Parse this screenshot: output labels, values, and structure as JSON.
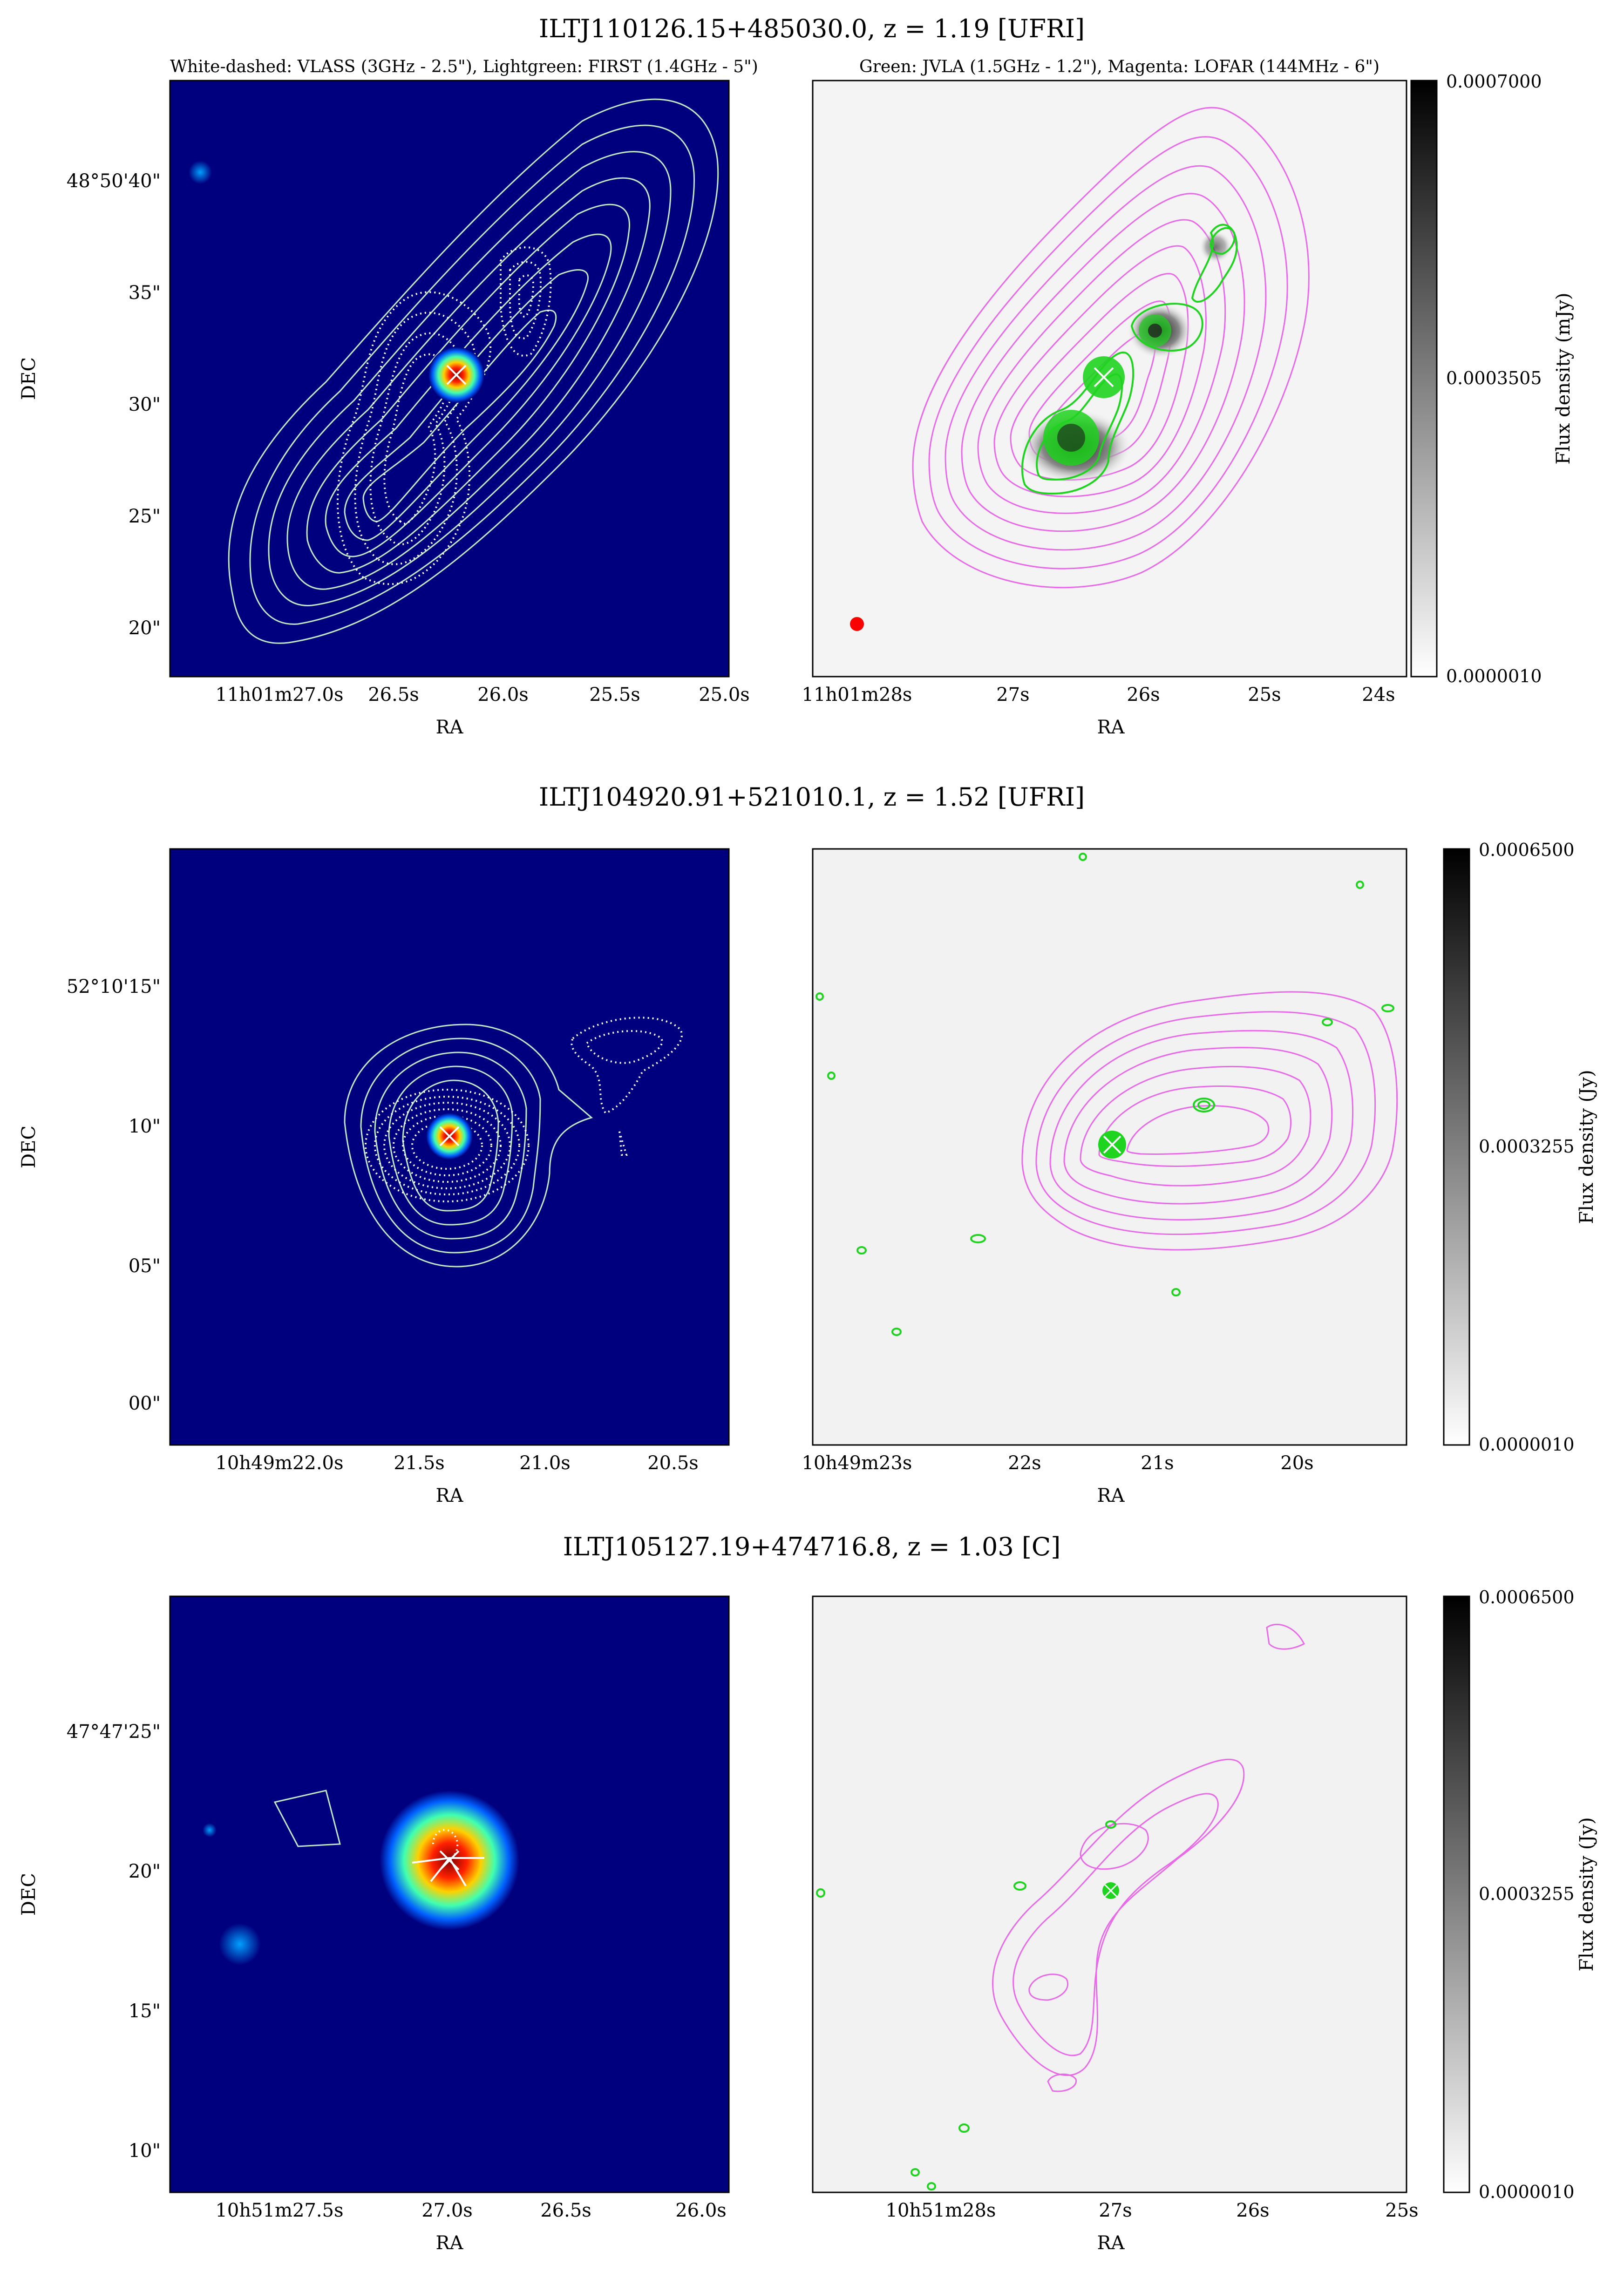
{
  "legend": {
    "left": "White-dashed: VLASS (3GHz - 2.5\"), Lightgreen: FIRST (1.4GHz - 5\")",
    "right": "Green: JVLA (1.5GHz - 1.2\"), Magenta: LOFAR (144MHz - 6\")"
  },
  "colors": {
    "background_map": "#00007f",
    "lofar_contour": "#e86ae8",
    "jvla_contour": "#1fd41f",
    "first_contour": "#bfe8c4",
    "vlass_contour": "#ffffff",
    "beam_marker": "#ff0000"
  },
  "panels": [
    {
      "title": "ILTJ110126.15+485030.0, z = 1.19 [UFRI]",
      "ylabel": "DEC",
      "xlabel": "RA",
      "dec_ticks": [
        "48°50'40\"",
        "35\"",
        "30\"",
        "25\"",
        "20\""
      ],
      "ra_ticks_left": [
        "11h01m27.0s",
        "26.5s",
        "26.0s",
        "25.5s",
        "25.0s"
      ],
      "ra_ticks_right": [
        "11h01m28s",
        "27s",
        "26s",
        "25s",
        "24s"
      ],
      "colorbar_label": "Flux density (mJy)",
      "colorbar_ticks": [
        "0.0007000",
        "0.0003505",
        "0.0000010"
      ]
    },
    {
      "title": "ILTJ104920.91+521010.1, z = 1.52 [UFRI]",
      "ylabel": "DEC",
      "xlabel": "RA",
      "dec_ticks": [
        "52°10'15\"",
        "10\"",
        "05\"",
        "00\""
      ],
      "ra_ticks_left": [
        "10h49m22.0s",
        "21.5s",
        "21.0s",
        "20.5s"
      ],
      "ra_ticks_right": [
        "10h49m23s",
        "22s",
        "21s",
        "20s"
      ],
      "colorbar_label": "Flux density (Jy)",
      "colorbar_ticks": [
        "0.0006500",
        "0.0003255",
        "0.0000010"
      ]
    },
    {
      "title": "ILTJ105127.19+474716.8, z = 1.03 [C]",
      "ylabel": "DEC",
      "xlabel": "RA",
      "dec_ticks": [
        "47°47'25\"",
        "20\"",
        "15\"",
        "10\""
      ],
      "ra_ticks_left": [
        "10h51m27.5s",
        "27.0s",
        "26.5s",
        "26.0s"
      ],
      "ra_ticks_right": [
        "10h51m28s",
        "27s",
        "26s",
        "25s"
      ],
      "colorbar_label": "Flux density (Jy)",
      "colorbar_ticks": [
        "0.0006500",
        "0.0003255",
        "0.0000010"
      ]
    }
  ]
}
